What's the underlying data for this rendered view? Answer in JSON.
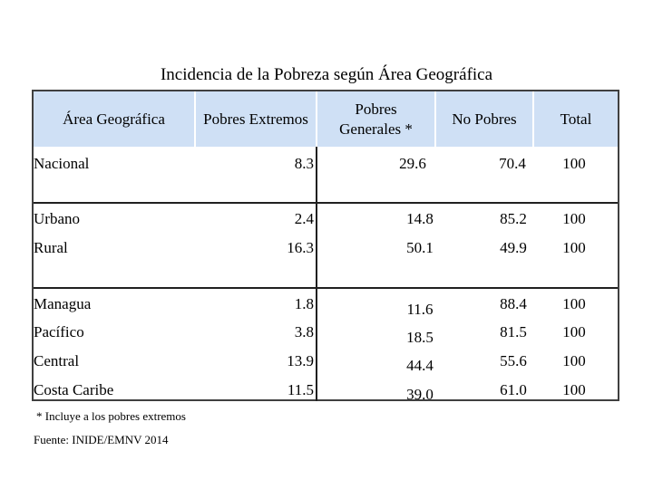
{
  "chart_data": {
    "type": "table",
    "title": "Incidencia de la Pobreza según Área Geográfica",
    "columns": [
      "Área Geográfica",
      "Pobres Extremos",
      "Pobres Generales *",
      "No Pobres",
      "Total"
    ],
    "rows": [
      {
        "area": "Nacional",
        "values": [
          "8.3",
          "29.6",
          "70.4",
          "100"
        ]
      },
      {
        "area": "Urbano",
        "values": [
          "2.4",
          "14.8",
          "85.2",
          "100"
        ]
      },
      {
        "area": "Rural",
        "values": [
          "16.3",
          "50.1",
          "49.9",
          "100"
        ]
      },
      {
        "area": "Managua",
        "values": [
          "1.8",
          "11.6",
          "88.4",
          "100"
        ]
      },
      {
        "area": "Pacífico",
        "values": [
          "3.8",
          "18.5",
          "81.5",
          "100"
        ]
      },
      {
        "area": "Central",
        "values": [
          "13.9",
          "44.4",
          "55.6",
          "100"
        ]
      },
      {
        "area": "Costa Caribe",
        "values": [
          "11.5",
          "39.0",
          "61.0",
          "100"
        ]
      }
    ],
    "note": "* Incluye a los pobres extremos",
    "source": "Fuente: INIDE/EMNV 2014"
  },
  "colors": {
    "header_background": "#cfe0f5",
    "border": "#404040"
  }
}
